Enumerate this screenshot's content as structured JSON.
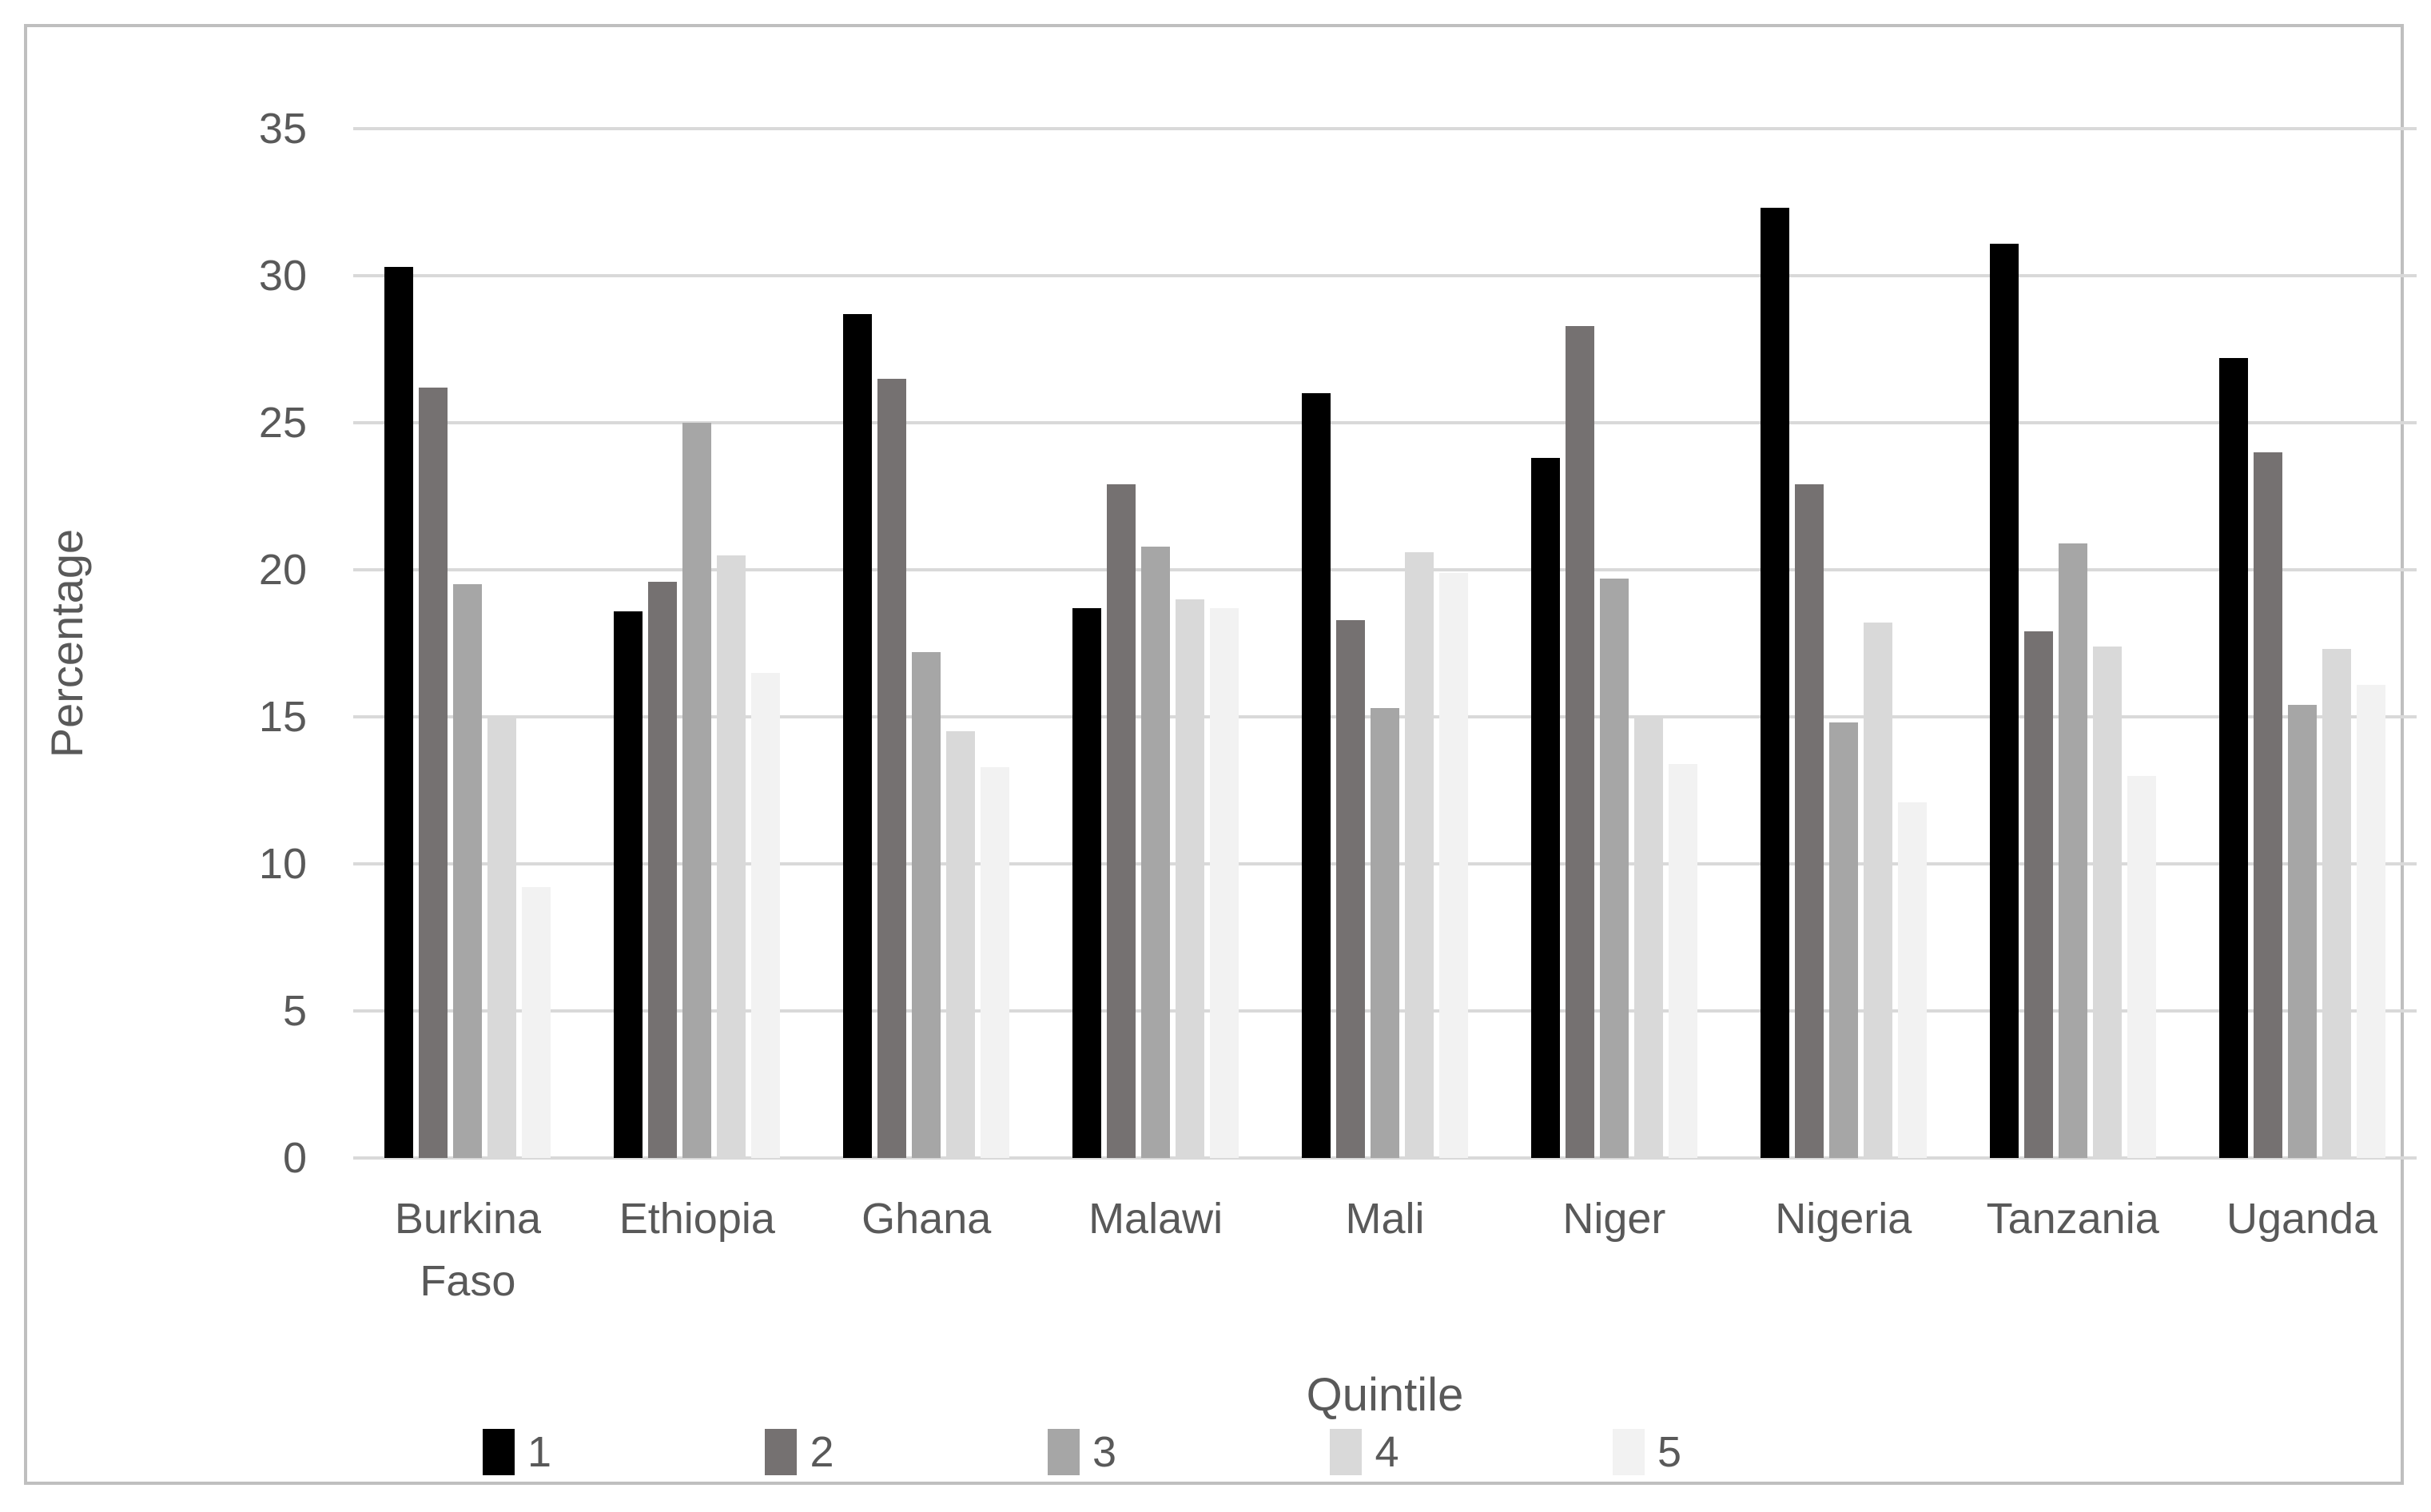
{
  "chart_data": {
    "type": "bar",
    "title": "",
    "xlabel": "Quintile",
    "ylabel": "Percentage",
    "ylim": [
      0,
      35
    ],
    "yticks": [
      0,
      5,
      10,
      15,
      20,
      25,
      30,
      35
    ],
    "grid": true,
    "legend_position": "bottom",
    "categories": [
      "Burkina Faso",
      "Ethiopia",
      "Ghana",
      "Malawi",
      "Mali",
      "Niger",
      "Nigeria",
      "Tanzania",
      "Uganda"
    ],
    "series": [
      {
        "name": "1",
        "color": "#000000",
        "values": [
          30.3,
          18.6,
          28.7,
          18.7,
          26.0,
          23.8,
          32.3,
          31.1,
          27.2
        ]
      },
      {
        "name": "2",
        "color": "#757171",
        "values": [
          26.2,
          19.6,
          26.5,
          22.9,
          18.3,
          28.3,
          22.9,
          17.9,
          24.0
        ]
      },
      {
        "name": "3",
        "color": "#A6A6A6",
        "values": [
          19.5,
          25.0,
          17.2,
          20.8,
          15.3,
          19.7,
          14.8,
          20.9,
          15.4
        ]
      },
      {
        "name": "4",
        "color": "#D9D9D9",
        "values": [
          15.0,
          20.5,
          14.5,
          19.0,
          20.6,
          15.0,
          18.2,
          17.4,
          17.3
        ]
      },
      {
        "name": "5",
        "color": "#F2F2F2",
        "values": [
          9.2,
          16.5,
          13.3,
          18.7,
          19.9,
          13.4,
          12.1,
          13.0,
          16.1
        ]
      }
    ]
  },
  "colors": {
    "gridline": "#D9D9D9",
    "axis_text": "#595959",
    "frame_border": "#BFBFBF",
    "background": "#FFFFFF"
  }
}
